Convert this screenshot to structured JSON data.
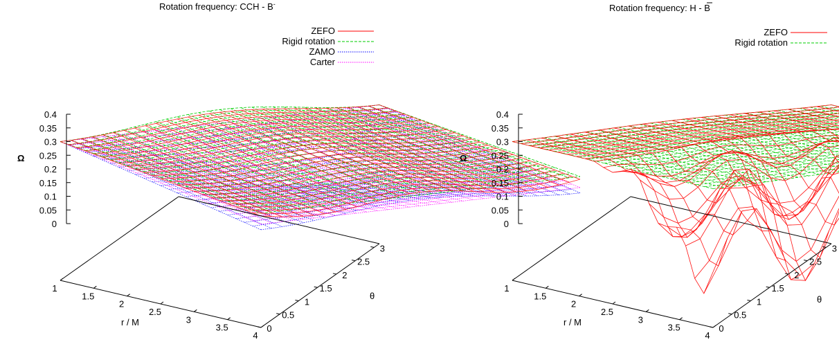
{
  "chart_data": [
    {
      "type": "surface3d",
      "title": "Rotation frequency: CCH - B",
      "title_superscript": "-",
      "xlabel": "r / M",
      "ylabel": "θ",
      "zlabel": "Ω",
      "x_ticks": [
        "1",
        "1.5",
        "2",
        "2.5",
        "3",
        "3.5",
        "4"
      ],
      "y_ticks": [
        "0",
        "0.5",
        "1",
        "1.5",
        "2",
        "2.5",
        "3"
      ],
      "z_ticks": [
        "0.4",
        "0.35",
        "0.3",
        "0.25",
        "0.2",
        "0.15",
        "0.1",
        "0.05",
        "0"
      ],
      "xlim": [
        1,
        4
      ],
      "ylim": [
        0,
        3.14
      ],
      "zlim": [
        0,
        0.4
      ],
      "legend_position": "top-right",
      "series": [
        {
          "name": "ZEFO",
          "color": "#ff0000",
          "style": "solid"
        },
        {
          "name": "Rigid rotation",
          "color": "#00cc00",
          "style": "dashed"
        },
        {
          "name": "ZAMO",
          "color": "#0000ff",
          "style": "dotted"
        },
        {
          "name": "Carter",
          "color": "#ff00ff",
          "style": "dotted"
        }
      ]
    },
    {
      "type": "surface3d",
      "title": "Rotation frequency: H - B",
      "title_overline": "-",
      "xlabel": "r / M",
      "ylabel": "θ",
      "zlabel": "Ω",
      "x_ticks": [
        "1",
        "1.5",
        "2",
        "2.5",
        "3",
        "3.5",
        "4"
      ],
      "y_ticks": [
        "0",
        "0.5",
        "1",
        "1.5",
        "2",
        "2.5",
        "3"
      ],
      "z_ticks": [
        "0.4",
        "0.35",
        "0.3",
        "0.25",
        "0.2",
        "0.15",
        "0.1",
        "0.05",
        "0"
      ],
      "xlim": [
        1,
        4
      ],
      "ylim": [
        0,
        3.14
      ],
      "zlim": [
        0,
        0.4
      ],
      "legend_position": "top-right",
      "series": [
        {
          "name": "ZEFO",
          "color": "#ff0000",
          "style": "solid"
        },
        {
          "name": "Rigid rotation",
          "color": "#00cc00",
          "style": "dashed"
        }
      ]
    }
  ]
}
